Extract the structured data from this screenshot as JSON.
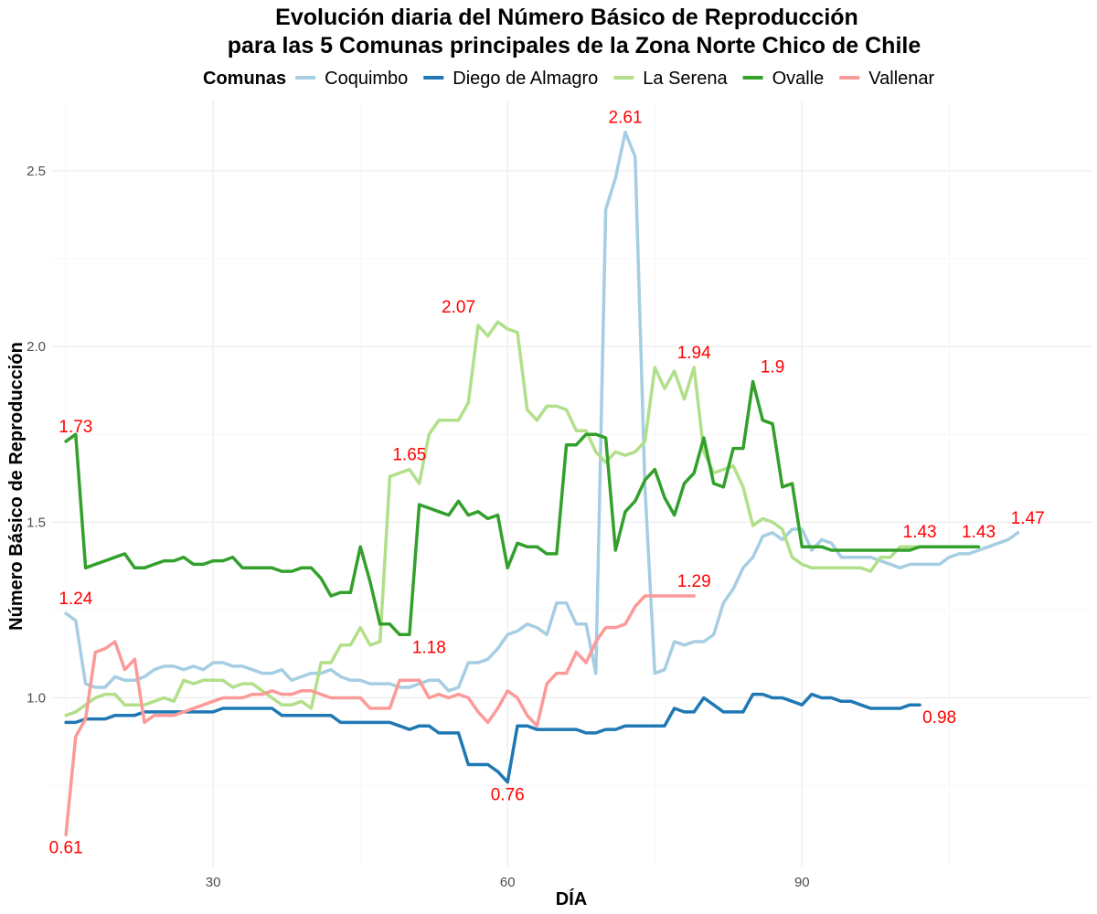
{
  "chart_data": {
    "type": "line",
    "title": "Evolución diaria del Número Básico de Reproducción",
    "subtitle": "para las 5 Comunas principales de la Zona Norte Chico de Chile",
    "xlabel": "DÍA",
    "ylabel": "Número Básico de Reproducción",
    "xlim": [
      13.5,
      119.5
    ],
    "ylim": [
      0.52,
      2.7
    ],
    "x_ticks": [
      30,
      60,
      90
    ],
    "y_ticks": [
      1.0,
      1.5,
      2.0,
      2.5
    ],
    "x_tick_labels": [
      "30",
      "60",
      "90"
    ],
    "y_tick_labels": [
      "1.0",
      "1.5",
      "2.0",
      "2.5"
    ],
    "grid": true,
    "legend": {
      "title": "Comunas",
      "position": "top"
    },
    "series": [
      {
        "name": "Coquimbo",
        "color": "#a6cee3",
        "x": [
          15,
          16,
          17,
          18,
          19,
          20,
          21,
          22,
          23,
          24,
          25,
          26,
          27,
          28,
          29,
          30,
          31,
          32,
          33,
          34,
          35,
          36,
          37,
          38,
          39,
          40,
          41,
          42,
          43,
          44,
          45,
          46,
          47,
          48,
          49,
          50,
          51,
          52,
          53,
          54,
          55,
          56,
          57,
          58,
          59,
          60,
          61,
          62,
          63,
          64,
          65,
          66,
          67,
          68,
          69,
          70,
          71,
          72,
          73,
          74,
          75,
          76,
          77,
          78,
          79,
          80,
          81,
          82,
          83,
          84,
          85,
          86,
          87,
          88,
          89,
          90,
          91,
          92,
          93,
          94,
          95,
          96,
          97,
          98,
          99,
          100,
          101,
          102,
          103,
          104,
          105,
          106,
          107,
          108,
          109,
          110,
          111,
          112
        ],
        "y": [
          1.24,
          1.22,
          1.04,
          1.03,
          1.03,
          1.06,
          1.05,
          1.05,
          1.06,
          1.08,
          1.09,
          1.09,
          1.08,
          1.09,
          1.08,
          1.1,
          1.1,
          1.09,
          1.09,
          1.08,
          1.07,
          1.07,
          1.08,
          1.05,
          1.06,
          1.07,
          1.07,
          1.08,
          1.06,
          1.05,
          1.05,
          1.04,
          1.04,
          1.04,
          1.03,
          1.03,
          1.04,
          1.05,
          1.05,
          1.02,
          1.03,
          1.1,
          1.1,
          1.11,
          1.14,
          1.18,
          1.19,
          1.21,
          1.2,
          1.18,
          1.27,
          1.27,
          1.21,
          1.21,
          1.07,
          2.39,
          2.48,
          2.61,
          2.54,
          1.6,
          1.07,
          1.08,
          1.16,
          1.15,
          1.16,
          1.16,
          1.18,
          1.27,
          1.31,
          1.37,
          1.4,
          1.46,
          1.47,
          1.45,
          1.48,
          1.48,
          1.42,
          1.45,
          1.44,
          1.4,
          1.4,
          1.4,
          1.4,
          1.39,
          1.38,
          1.37,
          1.38,
          1.38,
          1.38,
          1.38,
          1.4,
          1.41,
          1.41,
          1.42,
          1.43,
          1.44,
          1.45,
          1.47
        ]
      },
      {
        "name": "Diego de Almagro",
        "color": "#1f78b4",
        "x": [
          15,
          16,
          17,
          18,
          19,
          20,
          21,
          22,
          23,
          24,
          25,
          26,
          27,
          28,
          29,
          30,
          31,
          32,
          33,
          34,
          35,
          36,
          37,
          38,
          39,
          40,
          41,
          42,
          43,
          44,
          45,
          46,
          47,
          48,
          49,
          50,
          51,
          52,
          53,
          54,
          55,
          56,
          57,
          58,
          59,
          60,
          61,
          62,
          63,
          64,
          65,
          66,
          67,
          68,
          69,
          70,
          71,
          72,
          73,
          74,
          75,
          76,
          77,
          78,
          79,
          80,
          81,
          82,
          83,
          84,
          85,
          86,
          87,
          88,
          89,
          90,
          91,
          92,
          93,
          94,
          95,
          96,
          97,
          98,
          99,
          100,
          101,
          102
        ],
        "y": [
          0.93,
          0.93,
          0.94,
          0.94,
          0.94,
          0.95,
          0.95,
          0.95,
          0.96,
          0.96,
          0.96,
          0.96,
          0.96,
          0.96,
          0.96,
          0.96,
          0.97,
          0.97,
          0.97,
          0.97,
          0.97,
          0.97,
          0.95,
          0.95,
          0.95,
          0.95,
          0.95,
          0.95,
          0.93,
          0.93,
          0.93,
          0.93,
          0.93,
          0.93,
          0.92,
          0.91,
          0.92,
          0.92,
          0.9,
          0.9,
          0.9,
          0.81,
          0.81,
          0.81,
          0.79,
          0.76,
          0.92,
          0.92,
          0.91,
          0.91,
          0.91,
          0.91,
          0.91,
          0.9,
          0.9,
          0.91,
          0.91,
          0.92,
          0.92,
          0.92,
          0.92,
          0.92,
          0.97,
          0.96,
          0.96,
          1.0,
          0.98,
          0.96,
          0.96,
          0.96,
          1.01,
          1.01,
          1.0,
          1.0,
          0.99,
          0.98,
          1.01,
          1.0,
          1.0,
          0.99,
          0.99,
          0.98,
          0.97,
          0.97,
          0.97,
          0.97,
          0.98,
          0.98
        ]
      },
      {
        "name": "La Serena",
        "color": "#b2df8a",
        "x": [
          15,
          16,
          17,
          18,
          19,
          20,
          21,
          22,
          23,
          24,
          25,
          26,
          27,
          28,
          29,
          30,
          31,
          32,
          33,
          34,
          35,
          36,
          37,
          38,
          39,
          40,
          41,
          42,
          43,
          44,
          45,
          46,
          47,
          48,
          49,
          50,
          51,
          52,
          53,
          54,
          55,
          56,
          57,
          58,
          59,
          60,
          61,
          62,
          63,
          64,
          65,
          66,
          67,
          68,
          69,
          70,
          71,
          72,
          73,
          74,
          75,
          76,
          77,
          78,
          79,
          80,
          81,
          82,
          83,
          84,
          85,
          86,
          87,
          88,
          89,
          90,
          91,
          92,
          93,
          94,
          95,
          96,
          97,
          98,
          99,
          100,
          101,
          102
        ],
        "y": [
          0.95,
          0.96,
          0.98,
          1.0,
          1.01,
          1.01,
          0.98,
          0.98,
          0.98,
          0.99,
          1.0,
          0.99,
          1.05,
          1.04,
          1.05,
          1.05,
          1.05,
          1.03,
          1.04,
          1.04,
          1.02,
          1.0,
          0.98,
          0.98,
          0.99,
          0.97,
          1.1,
          1.1,
          1.15,
          1.15,
          1.2,
          1.15,
          1.16,
          1.63,
          1.64,
          1.65,
          1.61,
          1.75,
          1.79,
          1.79,
          1.79,
          1.84,
          2.06,
          2.03,
          2.07,
          2.05,
          2.04,
          1.82,
          1.79,
          1.83,
          1.83,
          1.82,
          1.76,
          1.76,
          1.7,
          1.67,
          1.7,
          1.69,
          1.7,
          1.73,
          1.94,
          1.88,
          1.93,
          1.85,
          1.94,
          1.7,
          1.64,
          1.65,
          1.66,
          1.6,
          1.49,
          1.51,
          1.5,
          1.48,
          1.4,
          1.38,
          1.37,
          1.37,
          1.37,
          1.37,
          1.37,
          1.37,
          1.36,
          1.4,
          1.4,
          1.43,
          1.43,
          1.43
        ]
      },
      {
        "name": "Ovalle",
        "color": "#33a02c",
        "x": [
          15,
          16,
          17,
          18,
          19,
          20,
          21,
          22,
          23,
          24,
          25,
          26,
          27,
          28,
          29,
          30,
          31,
          32,
          33,
          34,
          35,
          36,
          37,
          38,
          39,
          40,
          41,
          42,
          43,
          44,
          45,
          46,
          47,
          48,
          49,
          50,
          51,
          52,
          53,
          54,
          55,
          56,
          57,
          58,
          59,
          60,
          61,
          62,
          63,
          64,
          65,
          66,
          67,
          68,
          69,
          70,
          71,
          72,
          73,
          74,
          75,
          76,
          77,
          78,
          79,
          80,
          81,
          82,
          83,
          84,
          85,
          86,
          87,
          88,
          89,
          90,
          91,
          92,
          93,
          94,
          95,
          96,
          97,
          98,
          99,
          100,
          101,
          102,
          103,
          104,
          105,
          106,
          107,
          108
        ],
        "y": [
          1.73,
          1.75,
          1.37,
          1.38,
          1.39,
          1.4,
          1.41,
          1.37,
          1.37,
          1.38,
          1.39,
          1.39,
          1.4,
          1.38,
          1.38,
          1.39,
          1.39,
          1.4,
          1.37,
          1.37,
          1.37,
          1.37,
          1.36,
          1.36,
          1.37,
          1.37,
          1.34,
          1.29,
          1.3,
          1.3,
          1.43,
          1.33,
          1.21,
          1.21,
          1.18,
          1.18,
          1.55,
          1.54,
          1.53,
          1.52,
          1.56,
          1.52,
          1.53,
          1.51,
          1.52,
          1.37,
          1.44,
          1.43,
          1.43,
          1.41,
          1.41,
          1.72,
          1.72,
          1.75,
          1.75,
          1.74,
          1.42,
          1.53,
          1.56,
          1.62,
          1.65,
          1.57,
          1.52,
          1.61,
          1.64,
          1.74,
          1.61,
          1.6,
          1.71,
          1.71,
          1.9,
          1.79,
          1.78,
          1.6,
          1.61,
          1.43,
          1.43,
          1.43,
          1.42,
          1.42,
          1.42,
          1.42,
          1.42,
          1.42,
          1.42,
          1.42,
          1.42,
          1.43,
          1.43,
          1.43,
          1.43,
          1.43,
          1.43,
          1.43
        ]
      },
      {
        "name": "Vallenar",
        "color": "#fb9a99",
        "x": [
          15,
          16,
          17,
          18,
          19,
          20,
          21,
          22,
          23,
          24,
          25,
          26,
          27,
          28,
          29,
          30,
          31,
          32,
          33,
          34,
          35,
          36,
          37,
          38,
          39,
          40,
          41,
          42,
          43,
          44,
          45,
          46,
          47,
          48,
          49,
          50,
          51,
          52,
          53,
          54,
          55,
          56,
          57,
          58,
          59,
          60,
          61,
          62,
          63,
          64,
          65,
          66,
          67,
          68,
          69,
          70,
          71,
          72,
          73,
          74,
          75,
          76,
          77,
          78,
          79
        ],
        "y": [
          0.61,
          0.89,
          0.94,
          1.13,
          1.14,
          1.16,
          1.08,
          1.11,
          0.93,
          0.95,
          0.95,
          0.95,
          0.96,
          0.97,
          0.98,
          0.99,
          1.0,
          1.0,
          1.0,
          1.01,
          1.01,
          1.02,
          1.01,
          1.01,
          1.02,
          1.02,
          1.01,
          1.0,
          1.0,
          1.0,
          1.0,
          0.97,
          0.97,
          0.97,
          1.05,
          1.05,
          1.05,
          1.0,
          1.01,
          1.0,
          1.01,
          1.0,
          0.96,
          0.93,
          0.97,
          1.02,
          1.0,
          0.95,
          0.92,
          1.04,
          1.07,
          1.07,
          1.13,
          1.1,
          1.16,
          1.2,
          1.2,
          1.21,
          1.26,
          1.29,
          1.29,
          1.29,
          1.29,
          1.29,
          1.29
        ]
      }
    ],
    "annotations": [
      {
        "label": "2.61",
        "x": 72,
        "y": 2.61,
        "pos": "above"
      },
      {
        "label": "2.07",
        "x": 55,
        "y": 2.07,
        "pos": "above"
      },
      {
        "label": "1.94",
        "x": 79,
        "y": 1.94,
        "pos": "above"
      },
      {
        "label": "1.9",
        "x": 87,
        "y": 1.9,
        "pos": "above"
      },
      {
        "label": "1.73",
        "x": 16,
        "y": 1.73,
        "pos": "above"
      },
      {
        "label": "1.65",
        "x": 50,
        "y": 1.65,
        "pos": "above"
      },
      {
        "label": "1.47",
        "x": 113,
        "y": 1.47,
        "pos": "above"
      },
      {
        "label": "1.43",
        "x": 102,
        "y": 1.43,
        "pos": "above"
      },
      {
        "label": "1.43",
        "x": 108,
        "y": 1.43,
        "pos": "above"
      },
      {
        "label": "1.29",
        "x": 79,
        "y": 1.29,
        "pos": "above"
      },
      {
        "label": "1.24",
        "x": 16,
        "y": 1.24,
        "pos": "above"
      },
      {
        "label": "1.18",
        "x": 52,
        "y": 1.18,
        "pos": "below"
      },
      {
        "label": "0.98",
        "x": 104,
        "y": 0.98,
        "pos": "below"
      },
      {
        "label": "0.76",
        "x": 60,
        "y": 0.76,
        "pos": "below"
      },
      {
        "label": "0.61",
        "x": 15,
        "y": 0.61,
        "pos": "below"
      }
    ]
  }
}
